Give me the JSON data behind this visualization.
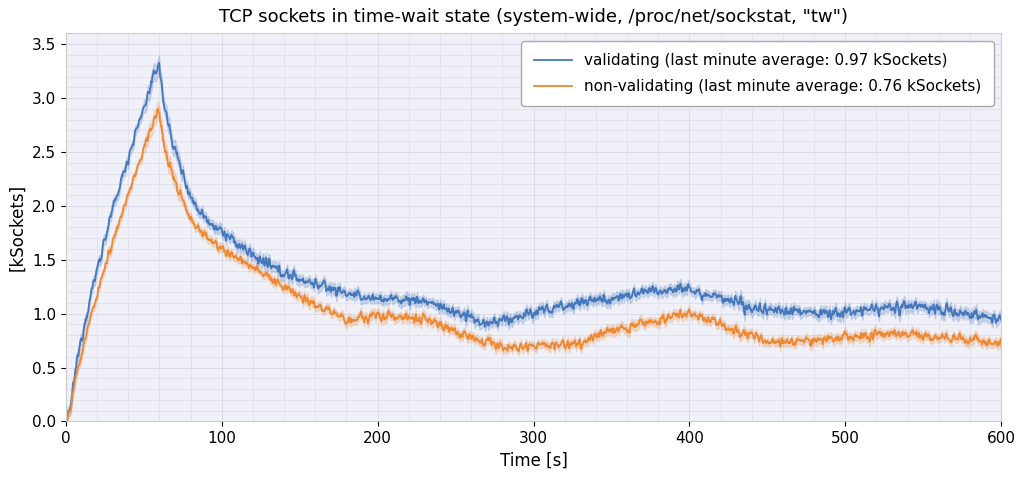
{
  "title": "TCP sockets in time-wait state (system-wide, /proc/net/sockstat, \"tw\")",
  "xlabel": "Time [s]",
  "ylabel": "[kSockets]",
  "xlim": [
    0,
    600
  ],
  "ylim": [
    0.0,
    3.6
  ],
  "yticks": [
    0.0,
    0.5,
    1.0,
    1.5,
    2.0,
    2.5,
    3.0,
    3.5
  ],
  "xticks": [
    0,
    100,
    200,
    300,
    400,
    500,
    600
  ],
  "blue_color": "#4477BB",
  "orange_color": "#EE8833",
  "blue_fill_alpha": 0.2,
  "orange_fill_alpha": 0.2,
  "legend_labels": [
    "validating (last minute average: 0.97 kSockets)",
    "non-validating (last minute average: 0.76 kSockets)"
  ],
  "background_color": "#f0f0f8",
  "grid_color": "#d8d8e8",
  "title_fontsize": 13,
  "label_fontsize": 12,
  "tick_fontsize": 11,
  "legend_fontsize": 11
}
